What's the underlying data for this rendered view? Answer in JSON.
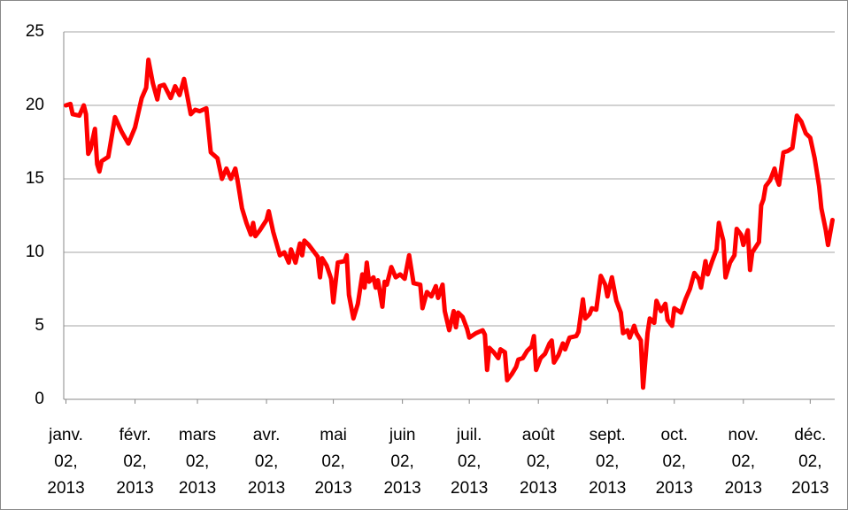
{
  "chart_data": {
    "type": "line",
    "x": [
      "2013-01-02",
      "2013-01-04",
      "2013-01-05",
      "2013-01-08",
      "2013-01-10",
      "2013-01-11",
      "2013-01-12",
      "2013-01-13",
      "2013-01-15",
      "2013-01-16",
      "2013-01-17",
      "2013-01-18",
      "2013-01-21",
      "2013-01-22",
      "2013-01-24",
      "2013-01-27",
      "2013-01-30",
      "2013-02-02",
      "2013-02-05",
      "2013-02-07",
      "2013-02-08",
      "2013-02-10",
      "2013-02-12",
      "2013-02-13",
      "2013-02-15",
      "2013-02-18",
      "2013-02-20",
      "2013-02-22",
      "2013-02-24",
      "2013-02-27",
      "2013-03-01",
      "2013-03-03",
      "2013-03-06",
      "2013-03-08",
      "2013-03-11",
      "2013-03-13",
      "2013-03-15",
      "2013-03-17",
      "2013-03-19",
      "2013-03-20",
      "2013-03-22",
      "2013-03-24",
      "2013-03-26",
      "2013-03-27",
      "2013-03-28",
      "2013-03-30",
      "2013-04-02",
      "2013-04-03",
      "2013-04-05",
      "2013-04-08",
      "2013-04-10",
      "2013-04-12",
      "2013-04-13",
      "2013-04-15",
      "2013-04-17",
      "2013-04-18",
      "2013-04-19",
      "2013-04-21",
      "2013-04-25",
      "2013-04-26",
      "2013-04-27",
      "2013-04-29",
      "2013-05-01",
      "2013-05-02",
      "2013-05-04",
      "2013-05-07",
      "2013-05-08",
      "2013-05-09",
      "2013-05-11",
      "2013-05-13",
      "2013-05-14",
      "2013-05-15",
      "2013-05-16",
      "2013-05-17",
      "2013-05-18",
      "2013-05-20",
      "2013-05-21",
      "2013-05-22",
      "2013-05-24",
      "2013-05-25",
      "2013-05-26",
      "2013-05-28",
      "2013-05-30",
      "2013-06-01",
      "2013-06-03",
      "2013-06-05",
      "2013-06-07",
      "2013-06-10",
      "2013-06-11",
      "2013-06-13",
      "2013-06-15",
      "2013-06-17",
      "2013-06-18",
      "2013-06-20",
      "2013-06-21",
      "2013-06-23",
      "2013-06-25",
      "2013-06-26",
      "2013-06-27",
      "2013-06-29",
      "2013-07-01",
      "2013-07-02",
      "2013-07-05",
      "2013-07-08",
      "2013-07-09",
      "2013-07-10",
      "2013-07-11",
      "2013-07-13",
      "2013-07-15",
      "2013-07-16",
      "2013-07-18",
      "2013-07-19",
      "2013-07-21",
      "2013-07-23",
      "2013-07-24",
      "2013-07-26",
      "2013-07-28",
      "2013-07-30",
      "2013-07-31",
      "2013-08-01",
      "2013-08-03",
      "2013-08-05",
      "2013-08-07",
      "2013-08-08",
      "2013-08-09",
      "2013-08-11",
      "2013-08-13",
      "2013-08-14",
      "2013-08-16",
      "2013-08-19",
      "2013-08-20",
      "2013-08-22",
      "2013-08-23",
      "2013-08-25",
      "2013-08-26",
      "2013-08-28",
      "2013-08-30",
      "2013-09-01",
      "2013-09-02",
      "2013-09-04",
      "2013-09-06",
      "2013-09-08",
      "2013-09-09",
      "2013-09-11",
      "2013-09-12",
      "2013-09-14",
      "2013-09-15",
      "2013-09-17",
      "2013-09-18",
      "2013-09-20",
      "2013-09-21",
      "2013-09-23",
      "2013-09-24",
      "2013-09-26",
      "2013-09-28",
      "2013-09-29",
      "2013-10-01",
      "2013-10-02",
      "2013-10-05",
      "2013-10-07",
      "2013-10-09",
      "2013-10-11",
      "2013-10-13",
      "2013-10-14",
      "2013-10-16",
      "2013-10-17",
      "2013-10-19",
      "2013-10-21",
      "2013-10-22",
      "2013-10-24",
      "2013-10-25",
      "2013-10-27",
      "2013-10-29",
      "2013-10-30",
      "2013-11-01",
      "2013-11-02",
      "2013-11-04",
      "2013-11-05",
      "2013-11-06",
      "2013-11-09",
      "2013-11-10",
      "2013-11-11",
      "2013-11-12",
      "2013-11-14",
      "2013-11-16",
      "2013-11-17",
      "2013-11-18",
      "2013-11-20",
      "2013-11-22",
      "2013-11-24",
      "2013-11-26",
      "2013-11-28",
      "2013-11-30",
      "2013-12-02",
      "2013-12-04",
      "2013-12-06",
      "2013-12-07",
      "2013-12-09",
      "2013-12-10",
      "2013-12-12"
    ],
    "series": [
      {
        "color": "#ff0000",
        "values": [
          20.0,
          20.1,
          19.4,
          19.3,
          20.0,
          19.4,
          16.7,
          17.0,
          18.4,
          16.0,
          15.5,
          16.2,
          16.5,
          17.4,
          19.2,
          18.2,
          17.4,
          18.5,
          20.5,
          21.2,
          23.1,
          21.5,
          20.4,
          21.3,
          21.4,
          20.5,
          21.3,
          20.7,
          21.8,
          19.4,
          19.7,
          19.6,
          19.8,
          16.8,
          16.4,
          15.0,
          15.7,
          15.0,
          15.7,
          14.9,
          13.0,
          12.0,
          11.2,
          12.0,
          11.1,
          11.5,
          12.2,
          12.8,
          11.4,
          9.8,
          10.0,
          9.3,
          10.2,
          9.3,
          10.6,
          9.8,
          10.8,
          10.5,
          9.7,
          8.3,
          9.6,
          9.1,
          8.2,
          6.6,
          9.3,
          9.4,
          9.8,
          7.1,
          5.5,
          6.5,
          7.5,
          8.5,
          7.6,
          9.3,
          8.0,
          8.3,
          7.6,
          8.1,
          6.3,
          8.0,
          7.8,
          9.0,
          8.3,
          8.5,
          8.2,
          9.8,
          7.9,
          7.8,
          6.2,
          7.3,
          7.0,
          7.7,
          6.9,
          7.8,
          6.0,
          4.7,
          6.0,
          4.9,
          5.9,
          5.6,
          4.8,
          4.2,
          4.5,
          4.7,
          4.4,
          2.0,
          3.5,
          3.2,
          2.8,
          3.4,
          3.2,
          1.3,
          1.7,
          2.2,
          2.7,
          2.8,
          3.3,
          3.6,
          4.3,
          2.0,
          2.8,
          3.1,
          3.8,
          4.0,
          2.5,
          3.0,
          3.8,
          3.4,
          4.2,
          4.3,
          4.6,
          6.8,
          5.5,
          5.8,
          6.2,
          6.1,
          8.4,
          7.8,
          7.0,
          8.3,
          6.7,
          5.9,
          4.5,
          4.7,
          4.2,
          5.0,
          4.5,
          4.0,
          0.8,
          4.5,
          5.5,
          5.2,
          6.7,
          6.0,
          6.5,
          5.4,
          5.0,
          6.2,
          5.9,
          6.8,
          7.5,
          8.6,
          8.2,
          7.6,
          9.4,
          8.5,
          9.4,
          10.2,
          12.0,
          10.8,
          8.3,
          9.3,
          9.8,
          11.6,
          11.2,
          10.5,
          11.5,
          8.8,
          10.0,
          10.7,
          13.2,
          13.6,
          14.5,
          14.9,
          15.7,
          15.0,
          14.6,
          16.8,
          16.9,
          17.1,
          19.3,
          18.9,
          18.1,
          17.8,
          16.4,
          14.5,
          13.0,
          11.5,
          10.5,
          12.2
        ]
      }
    ],
    "xlim": [
      "2013-01-01",
      "2013-12-13"
    ],
    "xticks": [
      {
        "value": "2013-01-02",
        "label": "janv. 02, 2013"
      },
      {
        "value": "2013-02-02",
        "label": "févr. 02, 2013"
      },
      {
        "value": "2013-03-02",
        "label": "mars 02, 2013"
      },
      {
        "value": "2013-04-02",
        "label": "avr. 02, 2013"
      },
      {
        "value": "2013-05-02",
        "label": "mai 02, 2013"
      },
      {
        "value": "2013-06-02",
        "label": "juin 02, 2013"
      },
      {
        "value": "2013-07-02",
        "label": "juil. 02, 2013"
      },
      {
        "value": "2013-08-02",
        "label": "août 02, 2013"
      },
      {
        "value": "2013-09-02",
        "label": "sept. 02, 2013"
      },
      {
        "value": "2013-10-02",
        "label": "oct. 02, 2013"
      },
      {
        "value": "2013-11-02",
        "label": "nov. 02, 2013"
      },
      {
        "value": "2013-12-02",
        "label": "déc. 02, 2013"
      }
    ],
    "ylim": [
      0,
      25
    ],
    "yticks": [
      0,
      5,
      10,
      15,
      20,
      25
    ],
    "grid": true
  }
}
